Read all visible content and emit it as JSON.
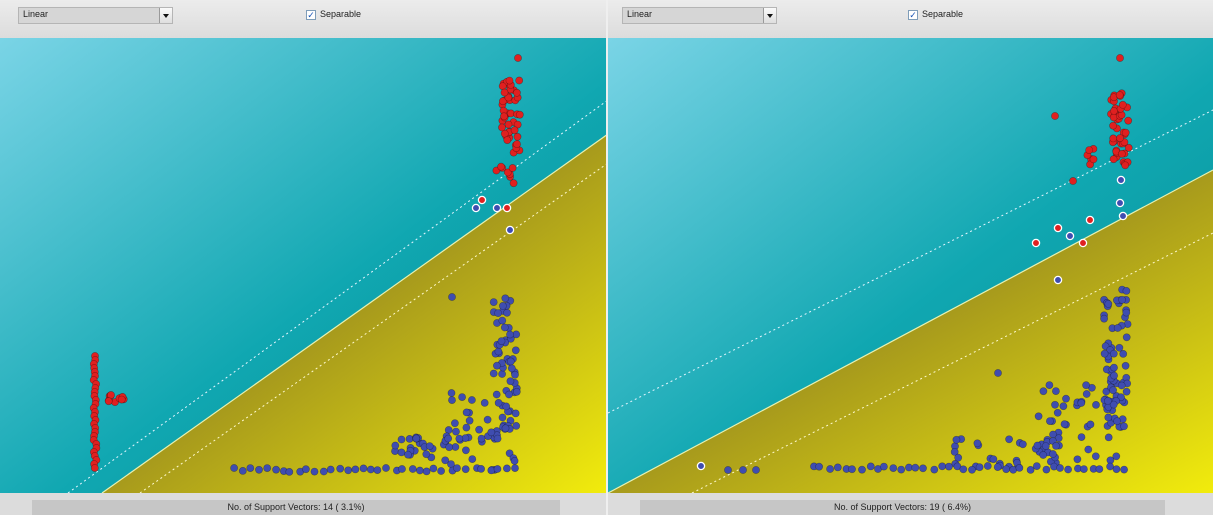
{
  "colors": {
    "class_a": "#e02020",
    "class_b": "#3f4db0",
    "region_cyan_light": "#7ad4e6",
    "region_cyan_dark": "#078a8f",
    "region_yellow_dark": "#6e6a28",
    "region_yellow_light": "#f2ec0c"
  },
  "panels": [
    {
      "kernel_select": {
        "value": "Linear"
      },
      "separable": {
        "label": "Separable",
        "checked": true
      },
      "status": {
        "text": "No. of Support Vectors: 14 ( 3.1%)"
      }
    },
    {
      "kernel_select": {
        "value": "Linear"
      },
      "separable": {
        "label": "Separable",
        "checked": true
      },
      "status": {
        "text": "No. of Support Vectors: 19 ( 6.4%)"
      }
    }
  ]
}
